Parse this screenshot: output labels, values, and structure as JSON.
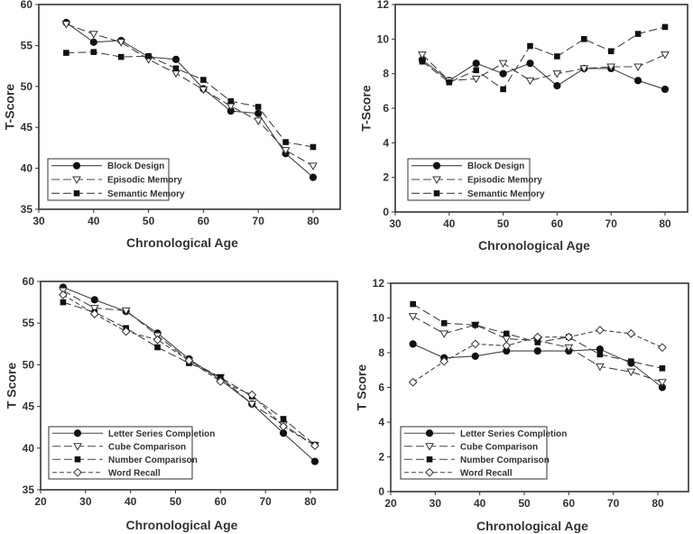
{
  "chart_data": [
    {
      "type": "line",
      "xlabel": "Chronological Age",
      "ylabel": "T-Score",
      "xlim": [
        30,
        85
      ],
      "ylim": [
        35,
        60
      ],
      "xticks": [
        30,
        40,
        50,
        60,
        70,
        80
      ],
      "yticks": [
        35,
        40,
        45,
        50,
        55,
        60
      ],
      "legend_position": "bottom-left",
      "grid": false,
      "x": [
        35,
        40,
        45,
        50,
        55,
        60,
        65,
        70,
        75,
        80
      ],
      "series": [
        {
          "name": "Block Design",
          "marker": "filled-circle",
          "line": "solid",
          "values": [
            57.8,
            55.4,
            55.6,
            53.6,
            53.3,
            49.7,
            47.0,
            46.7,
            41.8,
            38.9
          ]
        },
        {
          "name": "Episodic Memory",
          "marker": "open-triangle-down",
          "line": "long-dash",
          "values": [
            57.6,
            56.4,
            55.4,
            53.3,
            51.6,
            49.6,
            47.6,
            45.8,
            42.2,
            40.3
          ]
        },
        {
          "name": "Semantic Memory",
          "marker": "filled-square",
          "line": "long-dash",
          "values": [
            54.1,
            54.2,
            53.6,
            53.7,
            52.2,
            50.8,
            48.2,
            47.5,
            43.2,
            42.6
          ]
        }
      ]
    },
    {
      "type": "line",
      "xlabel": "Chronological Age",
      "ylabel": "T-Score",
      "xlim": [
        30,
        85
      ],
      "ylim": [
        0,
        12
      ],
      "xticks": [
        30,
        40,
        50,
        60,
        70,
        80
      ],
      "yticks": [
        0,
        2,
        4,
        6,
        8,
        10,
        12
      ],
      "legend_position": "bottom-left",
      "grid": false,
      "x": [
        35,
        40,
        45,
        50,
        55,
        60,
        65,
        70,
        75,
        80
      ],
      "series": [
        {
          "name": "Block Design",
          "marker": "filled-circle",
          "line": "solid",
          "values": [
            8.8,
            7.6,
            8.6,
            8.0,
            8.6,
            7.3,
            8.3,
            8.3,
            7.6,
            7.1
          ]
        },
        {
          "name": "Episodic Memory",
          "marker": "open-triangle-down",
          "line": "long-dash",
          "values": [
            9.1,
            7.6,
            7.7,
            8.6,
            7.6,
            8.0,
            8.3,
            8.4,
            8.4,
            9.1
          ]
        },
        {
          "name": "Semantic Memory",
          "marker": "filled-square",
          "line": "long-dash",
          "values": [
            8.7,
            7.5,
            8.2,
            7.1,
            9.6,
            9.0,
            10.0,
            9.3,
            10.3,
            10.7
          ]
        }
      ]
    },
    {
      "type": "line",
      "xlabel": "Chronological Age",
      "ylabel": "T Score",
      "xlim": [
        20,
        86
      ],
      "ylim": [
        35,
        60
      ],
      "xticks": [
        20,
        30,
        40,
        50,
        60,
        70,
        80
      ],
      "yticks": [
        35,
        40,
        45,
        50,
        55,
        60
      ],
      "legend_position": "bottom-left",
      "grid": false,
      "x": [
        25,
        32,
        39,
        46,
        53,
        60,
        67,
        74,
        81
      ],
      "series": [
        {
          "name": "Letter Series Completion",
          "marker": "filled-circle",
          "line": "solid",
          "values": [
            59.3,
            57.8,
            56.4,
            53.8,
            50.7,
            48.2,
            45.3,
            41.8,
            38.4
          ]
        },
        {
          "name": "Cube Comparison",
          "marker": "open-triangle-down",
          "line": "long-dash",
          "values": [
            58.9,
            56.8,
            56.5,
            53.5,
            50.5,
            48.5,
            45.3,
            42.8,
            40.3
          ]
        },
        {
          "name": "Number Comparison",
          "marker": "filled-square",
          "line": "long-dash",
          "values": [
            57.5,
            56.3,
            54.4,
            52.1,
            50.2,
            48.5,
            46.2,
            43.5,
            40.4
          ]
        },
        {
          "name": "Word Recall",
          "marker": "open-diamond",
          "line": "short-dash",
          "values": [
            58.4,
            56.1,
            54.0,
            53.0,
            50.5,
            48.0,
            46.4,
            42.6,
            40.3
          ]
        }
      ]
    },
    {
      "type": "line",
      "xlabel": "Chronological Age",
      "ylabel": "T Score",
      "xlim": [
        20,
        86
      ],
      "ylim": [
        0,
        12
      ],
      "xticks": [
        20,
        30,
        40,
        50,
        60,
        70,
        80
      ],
      "yticks": [
        0,
        2,
        4,
        6,
        8,
        10,
        12
      ],
      "legend_position": "bottom-left",
      "grid": false,
      "x": [
        25,
        32,
        39,
        46,
        53,
        60,
        67,
        74,
        81
      ],
      "series": [
        {
          "name": "Letter Series Completion",
          "marker": "filled-circle",
          "line": "solid",
          "values": [
            8.5,
            7.7,
            7.8,
            8.1,
            8.1,
            8.1,
            8.2,
            7.4,
            6.0
          ]
        },
        {
          "name": "Cube Comparison",
          "marker": "open-triangle-down",
          "line": "long-dash",
          "values": [
            10.1,
            9.1,
            9.6,
            8.8,
            8.7,
            8.3,
            7.2,
            6.9,
            6.3
          ]
        },
        {
          "name": "Number Comparison",
          "marker": "filled-square",
          "line": "long-dash",
          "values": [
            10.8,
            9.7,
            9.6,
            9.1,
            8.6,
            8.9,
            7.9,
            7.5,
            7.1
          ]
        },
        {
          "name": "Word Recall",
          "marker": "open-diamond",
          "line": "short-dash",
          "values": [
            6.3,
            7.5,
            8.5,
            8.4,
            8.9,
            8.9,
            9.3,
            9.1,
            8.3
          ]
        }
      ]
    }
  ]
}
